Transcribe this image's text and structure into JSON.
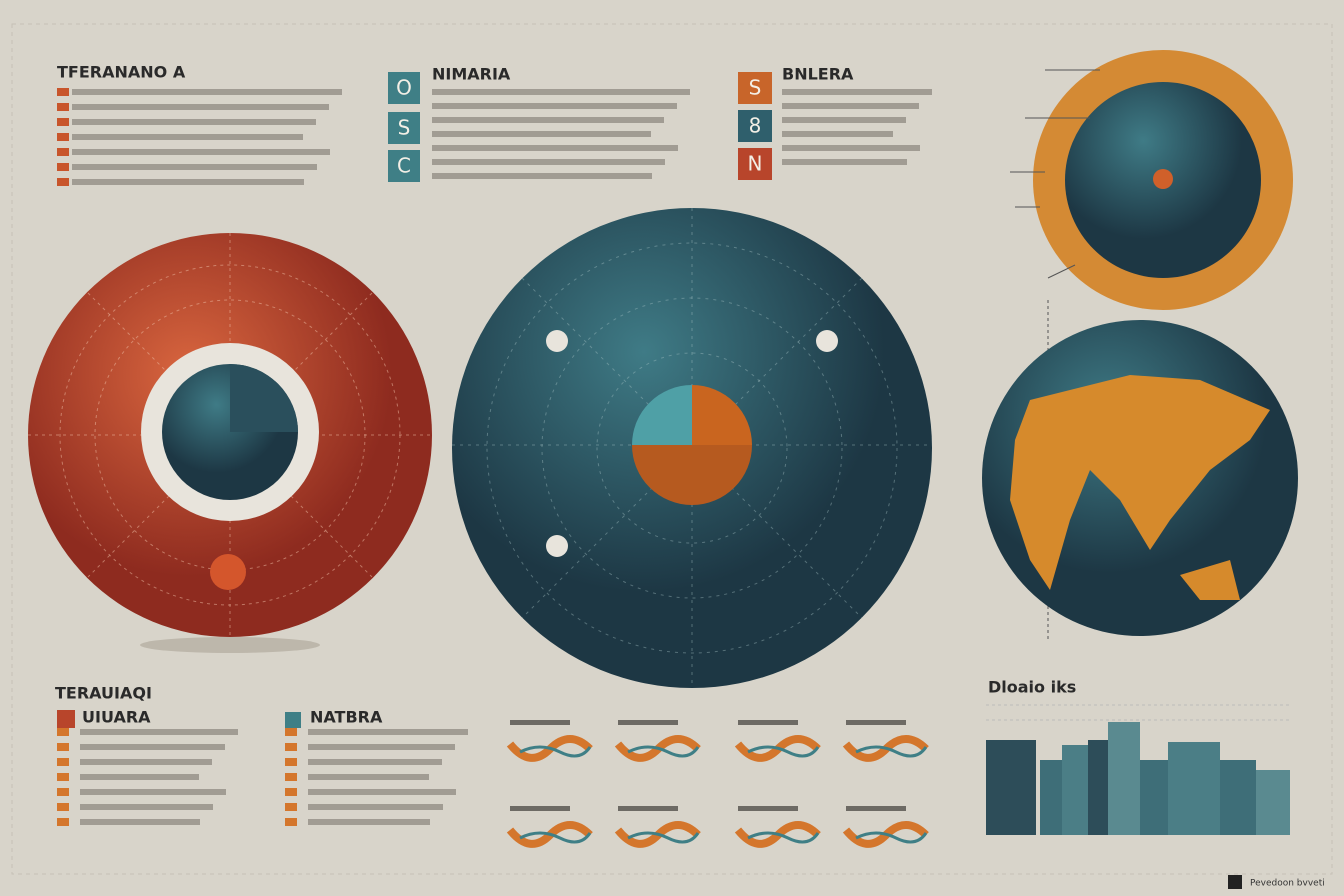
{
  "header": {
    "title": "TFERANANO A"
  },
  "panel_a": {
    "title": "NIMARIA",
    "icons": [
      "O",
      "S",
      "C"
    ]
  },
  "panel_b": {
    "title": "BNLERA",
    "icons": [
      "S",
      "8",
      "N"
    ]
  },
  "lower": {
    "title": "TERAUIAQI",
    "list_a": "UIUARA",
    "list_b": "NATBRA"
  },
  "bar_panel": {
    "title": "Dloaio iks"
  },
  "footer": {
    "text": "Pevedoon bvveti"
  }
}
